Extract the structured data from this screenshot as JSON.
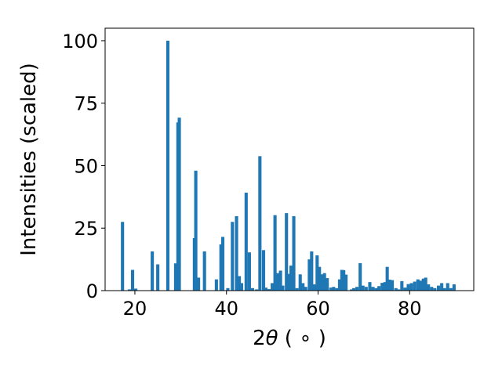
{
  "chart_data": {
    "type": "bar",
    "xlabel_parts": {
      "prefix": "2",
      "symbol": "θ",
      "suffix": " ( ∘ )"
    },
    "ylabel": "Intensities (scaled)",
    "xlim": [
      13.5,
      94.0
    ],
    "ylim": [
      0,
      105
    ],
    "xticks": [
      20,
      40,
      60,
      80
    ],
    "yticks": [
      0,
      25,
      50,
      75,
      100
    ],
    "grid": false,
    "bar_color": "#1f77b4",
    "bar_width": 0.7,
    "x": [
      17.3,
      18.8,
      19.5,
      20.2,
      23.8,
      25.0,
      27.2,
      28.9,
      29.4,
      29.7,
      33.0,
      33.3,
      33.9,
      35.2,
      37.8,
      38.8,
      39.2,
      40.3,
      41.3,
      42.2,
      42.8,
      43.3,
      44.3,
      45.0,
      45.7,
      46.6,
      47.3,
      48.1,
      48.6,
      49.3,
      50.0,
      50.6,
      51.2,
      51.8,
      52.3,
      53.1,
      53.6,
      54.1,
      54.7,
      55.4,
      56.1,
      56.7,
      57.3,
      58.1,
      58.6,
      59.2,
      59.8,
      60.3,
      60.8,
      61.4,
      62.0,
      62.8,
      63.4,
      64.1,
      64.7,
      65.2,
      65.6,
      66.1,
      67.3,
      67.8,
      68.5,
      69.2,
      69.8,
      70.5,
      71.3,
      72.0,
      72.7,
      73.3,
      74.0,
      74.6,
      75.1,
      75.6,
      76.2,
      77.0,
      77.6,
      78.3,
      79.0,
      79.7,
      80.4,
      81.1,
      81.8,
      82.4,
      83.0,
      83.5,
      84.1,
      84.8,
      85.5,
      86.3,
      87.0,
      87.6,
      88.3,
      89.0,
      89.7
    ],
    "values": [
      27.5,
      0.5,
      8.3,
      0.8,
      15.7,
      10.5,
      100,
      10.9,
      67.3,
      69.2,
      21.0,
      48.0,
      5.2,
      15.7,
      4.5,
      18.5,
      21.5,
      1.0,
      27.5,
      29.8,
      5.8,
      3.0,
      39.2,
      15.3,
      1.0,
      0.5,
      53.8,
      16.2,
      1.2,
      0.6,
      3.0,
      30.2,
      7.0,
      8.0,
      2.0,
      31.0,
      6.7,
      10.0,
      29.8,
      1.0,
      6.5,
      3.0,
      1.5,
      12.5,
      15.7,
      2.5,
      14.1,
      9.5,
      6.5,
      7.0,
      5.0,
      1.2,
      1.5,
      1.0,
      4.5,
      8.3,
      8.2,
      6.4,
      0.5,
      1.0,
      1.5,
      11.0,
      2.0,
      1.5,
      3.4,
      1.5,
      1.0,
      1.8,
      3.1,
      3.4,
      9.5,
      4.4,
      4.2,
      1.0,
      0.5,
      3.8,
      1.2,
      2.6,
      3.0,
      3.6,
      4.5,
      4.0,
      4.8,
      5.2,
      2.5,
      1.5,
      1.0,
      2.0,
      3.0,
      1.0,
      3.0,
      1.0,
      2.5
    ]
  }
}
